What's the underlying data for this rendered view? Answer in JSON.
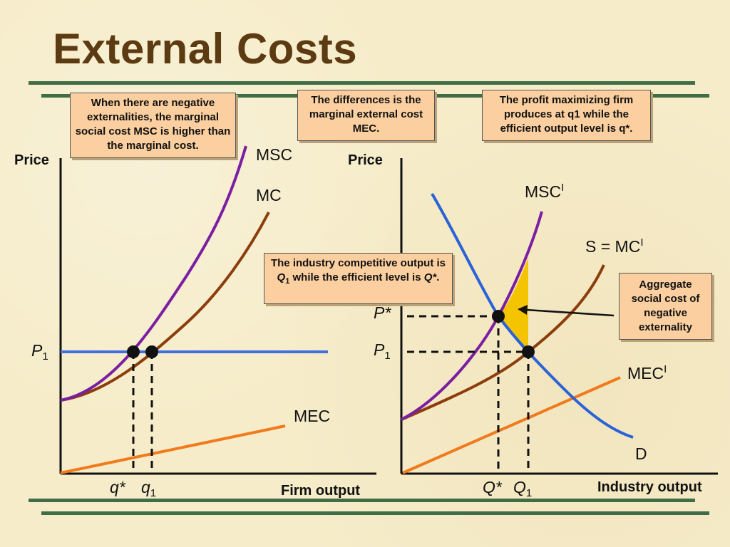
{
  "slide": {
    "title": "External Costs"
  },
  "notes": {
    "negative_externalities": "When there are negative externalities, the marginal social cost MSC is higher than the marginal cost.",
    "differences": "The differences is the marginal external cost MEC.",
    "profit_max": "The profit maximizing firm produces at q1 while the efficient output level is q*.",
    "industry_output_pre": "The industry competitive output is ",
    "industry_output_q": "Q",
    "industry_output_sub": "1",
    "industry_output_mid": " while the efficient level is ",
    "industry_output_star": "Q*",
    "industry_output_end": ".",
    "aggregate": "Aggregate social cost of negative externality"
  },
  "firm_panel": {
    "y_axis_label": "Price",
    "x_axis_label": "Firm output",
    "curve_msc": "MSC",
    "curve_mc": "MC",
    "curve_mec": "MEC",
    "price_label_main": "P",
    "price_label_sub": "1",
    "q_star_label": "q*",
    "q1_label_main": "q",
    "q1_label_sub": "1"
  },
  "industry_panel": {
    "y_axis_label": "Price",
    "x_axis_label": "Industry output",
    "curve_msc_main": "MSC",
    "curve_msc_sup": "I",
    "curve_s_main": "S = MC",
    "curve_s_sup": "I",
    "curve_mec_main": "MEC",
    "curve_mec_sup": "I",
    "curve_d": "D",
    "p_star_label": "P*",
    "p1_label_main": "P",
    "p1_label_sub": "1",
    "q_star_label": "Q*",
    "q1_label_main": "Q",
    "q1_label_sub": "1"
  },
  "colors": {
    "msc": "#7b1fa2",
    "mc": "#8b3d0c",
    "mec": "#f07a1c",
    "price_line": "#3f6fe0",
    "demand": "#2a62d8",
    "triangle": "#f5c400",
    "rule": "#3f6e46",
    "title": "#5c3a12",
    "note_bg": "#fbcf9f"
  }
}
